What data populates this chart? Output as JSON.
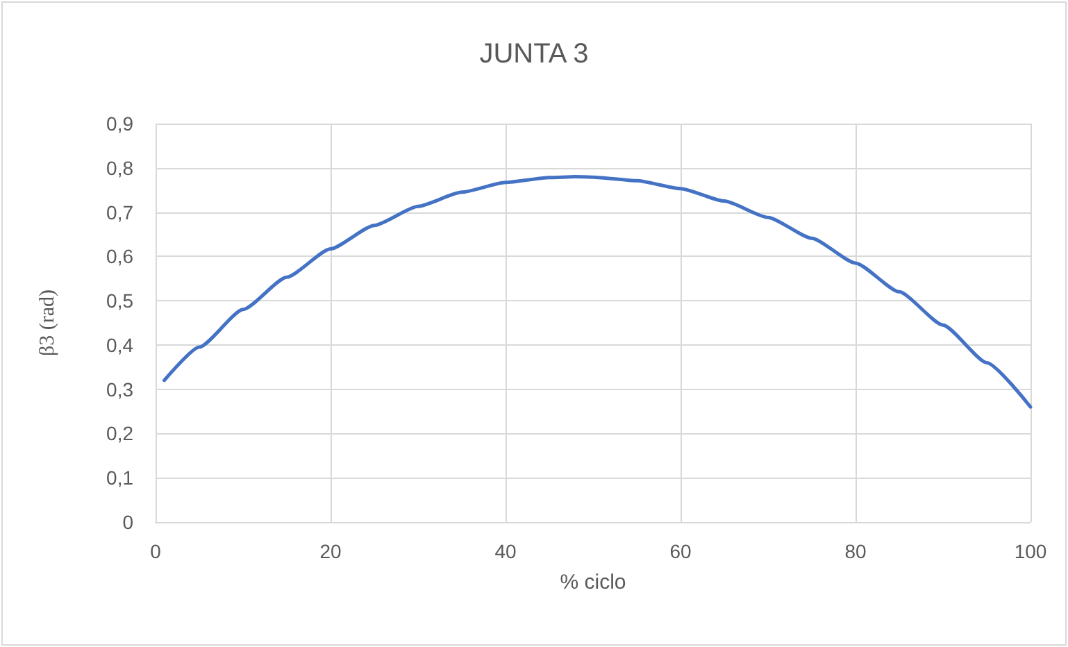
{
  "chart_data": {
    "type": "line",
    "title": "JUNTA 3",
    "xlabel": "% ciclo",
    "ylabel": "β3 (rad)",
    "x": [
      1,
      5,
      10,
      15,
      20,
      25,
      30,
      35,
      40,
      45,
      48,
      50,
      55,
      60,
      65,
      70,
      75,
      80,
      85,
      90,
      95,
      100
    ],
    "series": [
      {
        "color": "#4472c4",
        "values": [
          0.32,
          0.395,
          0.48,
          0.553,
          0.617,
          0.67,
          0.713,
          0.745,
          0.767,
          0.778,
          0.78,
          0.779,
          0.771,
          0.753,
          0.725,
          0.688,
          0.641,
          0.585,
          0.52,
          0.445,
          0.36,
          0.26
        ]
      }
    ],
    "xlim": [
      0,
      100
    ],
    "xticks": [
      0,
      20,
      40,
      60,
      80,
      100
    ],
    "ylim": [
      0,
      0.9
    ],
    "yticks": [
      0,
      {
        "value": 0.1,
        "label": "0,1"
      },
      {
        "value": 0.2,
        "label": "0,2"
      },
      {
        "value": 0.3,
        "label": "0,3"
      },
      {
        "value": 0.4,
        "label": "0,4"
      },
      {
        "value": 0.5,
        "label": "0,5"
      },
      {
        "value": 0.6,
        "label": "0,6"
      },
      {
        "value": 0.7,
        "label": "0,7"
      },
      {
        "value": 0.8,
        "label": "0,8"
      },
      {
        "value": 0.9,
        "label": "0,9"
      }
    ],
    "grid": true,
    "marker": "none",
    "line_style": "solid"
  }
}
